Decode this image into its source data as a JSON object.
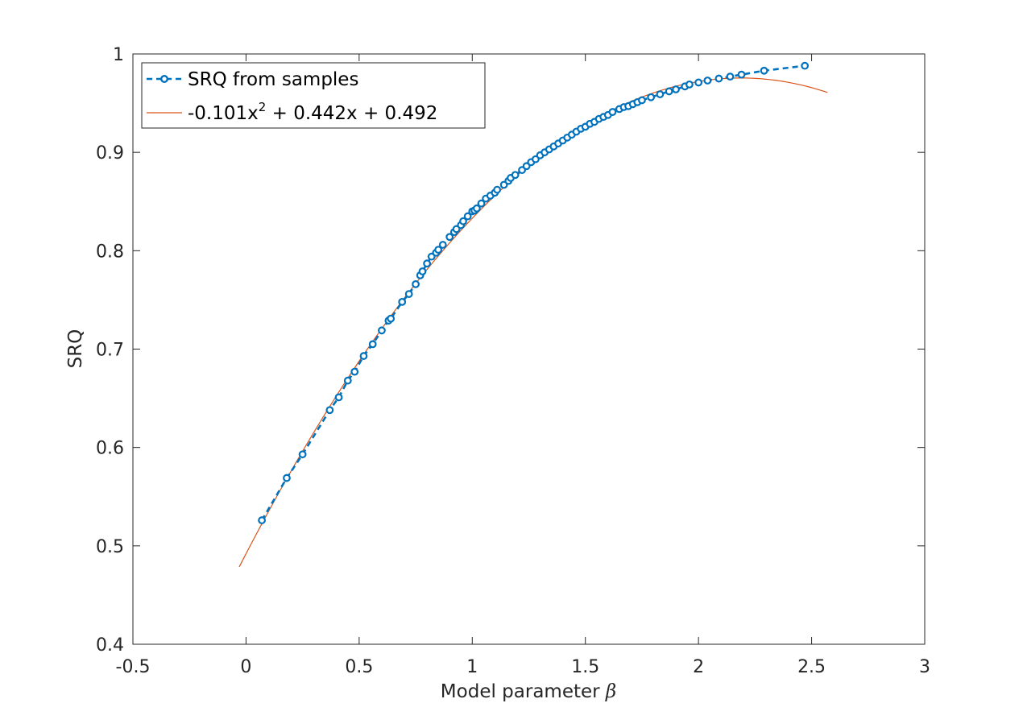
{
  "chart_data": {
    "type": "line",
    "xlabel": "Model parameter",
    "xlabel_symbol": "β",
    "ylabel": "SRQ",
    "xlim": [
      -0.5,
      3
    ],
    "ylim": [
      0.4,
      1
    ],
    "xticks": [
      "-0.5",
      "0",
      "0.5",
      "1",
      "1.5",
      "2",
      "2.5",
      "3"
    ],
    "yticks": [
      "0.4",
      "0.5",
      "0.6",
      "0.7",
      "0.8",
      "0.9",
      "1"
    ],
    "grid": false,
    "legend_position": "top-left",
    "series": [
      {
        "name": "SRQ from samples",
        "style": "dashed-with-circle-markers",
        "color": "#0072BD",
        "x": [
          0.07,
          0.18,
          0.25,
          0.37,
          0.41,
          0.45,
          0.48,
          0.52,
          0.56,
          0.6,
          0.63,
          0.64,
          0.69,
          0.72,
          0.75,
          0.77,
          0.78,
          0.8,
          0.82,
          0.84,
          0.85,
          0.87,
          0.9,
          0.92,
          0.93,
          0.95,
          0.96,
          0.98,
          1.0,
          1.01,
          1.02,
          1.04,
          1.06,
          1.08,
          1.1,
          1.11,
          1.14,
          1.16,
          1.17,
          1.19,
          1.22,
          1.24,
          1.26,
          1.28,
          1.3,
          1.32,
          1.34,
          1.36,
          1.38,
          1.4,
          1.42,
          1.44,
          1.46,
          1.48,
          1.5,
          1.52,
          1.54,
          1.56,
          1.58,
          1.6,
          1.62,
          1.65,
          1.67,
          1.69,
          1.71,
          1.73,
          1.75,
          1.79,
          1.83,
          1.87,
          1.9,
          1.94,
          1.96,
          2.0,
          2.04,
          2.09,
          2.14,
          2.19,
          2.29,
          2.47
        ],
        "y": [
          0.526,
          0.569,
          0.593,
          0.638,
          0.651,
          0.668,
          0.677,
          0.693,
          0.705,
          0.719,
          0.729,
          0.731,
          0.748,
          0.756,
          0.766,
          0.775,
          0.779,
          0.787,
          0.794,
          0.798,
          0.801,
          0.806,
          0.814,
          0.819,
          0.822,
          0.826,
          0.83,
          0.835,
          0.84,
          0.841,
          0.843,
          0.848,
          0.853,
          0.856,
          0.859,
          0.862,
          0.867,
          0.871,
          0.874,
          0.877,
          0.882,
          0.886,
          0.89,
          0.893,
          0.897,
          0.9,
          0.903,
          0.906,
          0.909,
          0.912,
          0.915,
          0.918,
          0.921,
          0.924,
          0.926,
          0.929,
          0.931,
          0.934,
          0.936,
          0.938,
          0.941,
          0.944,
          0.946,
          0.947,
          0.949,
          0.951,
          0.953,
          0.956,
          0.959,
          0.962,
          0.964,
          0.967,
          0.969,
          0.971,
          0.973,
          0.975,
          0.977,
          0.979,
          0.983,
          0.988
        ]
      },
      {
        "name": "-0.101x",
        "name_superscript": "2",
        "name_rest": " + 0.442x + 0.492",
        "style": "solid",
        "color": "#D95319",
        "coefficients": [
          -0.101,
          0.442,
          0.492
        ],
        "x_range": [
          -0.03,
          2.57
        ]
      }
    ]
  }
}
